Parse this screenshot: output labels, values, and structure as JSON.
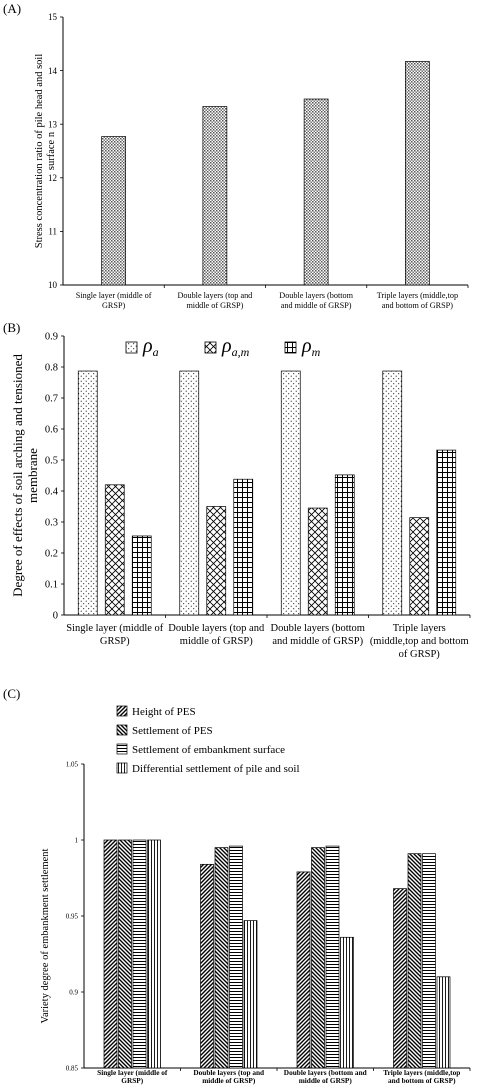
{
  "chart_data": [
    {
      "panel": "(A)",
      "type": "bar",
      "ylabel_lines": [
        "Stress concentration ratio of pile head and soil",
        "surface n"
      ],
      "ylim": [
        10,
        15
      ],
      "yticks": [
        10,
        11,
        12,
        13,
        14,
        15
      ],
      "grid": false,
      "categories": [
        [
          "Single layer (middle of",
          "GRSP)"
        ],
        [
          "Double layers (top and",
          "middle of GRSP)"
        ],
        [
          "Double layers (bottom",
          "and middle of GRSP)"
        ],
        [
          "Triple layers (middle,top",
          "and bottom of GRSP)"
        ]
      ],
      "values": [
        12.77,
        13.33,
        13.47,
        14.17
      ]
    },
    {
      "panel": "(B)",
      "type": "bar",
      "ylabel_lines": [
        "Degree of effects of soil arching and tensioned",
        "membrane"
      ],
      "ylim": [
        0,
        0.9
      ],
      "yticks": [
        0,
        0.1,
        0.2,
        0.3,
        0.4,
        0.5,
        0.6,
        0.7,
        0.8,
        0.9
      ],
      "grid": false,
      "legend_position": "top",
      "categories": [
        [
          "Single layer (middle of",
          "GRSP)"
        ],
        [
          "Double layers (top and",
          "middle of GRSP)"
        ],
        [
          "Double layers (bottom",
          "and middle of GRSP)"
        ],
        [
          "Triple layers",
          "(middle,top and bottom",
          "of GRSP)"
        ]
      ],
      "series": [
        {
          "name": "ρa",
          "symbol": "ρ",
          "sub": "a",
          "pattern": "dots",
          "values": [
            0.787,
            0.787,
            0.787,
            0.787
          ]
        },
        {
          "name": "ρa,m",
          "symbol": "ρ",
          "sub": "a,m",
          "pattern": "crosshatch",
          "values": [
            0.42,
            0.35,
            0.345,
            0.314
          ]
        },
        {
          "name": "ρm",
          "symbol": "ρ",
          "sub": "m",
          "pattern": "grid",
          "values": [
            0.255,
            0.438,
            0.452,
            0.532
          ]
        }
      ]
    },
    {
      "panel": "(C)",
      "type": "bar",
      "ylabel": "Variety degree of embankment settlement",
      "ylim": [
        0.85,
        1.05
      ],
      "yticks": [
        0.85,
        0.9,
        0.95,
        1,
        1.05
      ],
      "grid": false,
      "legend_position": "top-left",
      "categories": [
        [
          "Single layer (middle of",
          "GRSP)"
        ],
        [
          "Double layers (top and",
          "middle of GRSP)"
        ],
        [
          "Double layers (bottom and",
          "middle of GRSP)"
        ],
        [
          "Triple layers (middle,top",
          "and bottom of GRSP)"
        ]
      ],
      "series": [
        {
          "name": "Height of PES",
          "pattern": "diag-fwd",
          "values": [
            1.0,
            0.984,
            0.979,
            0.968
          ]
        },
        {
          "name": "Settlement of PES",
          "pattern": "diag-back",
          "values": [
            1.0,
            0.995,
            0.995,
            0.991
          ]
        },
        {
          "name": "Settlement of embankment surface",
          "pattern": "horizontal",
          "values": [
            1.0,
            0.996,
            0.996,
            0.991
          ]
        },
        {
          "name": "Differential settlement of pile and soil",
          "pattern": "vertical",
          "values": [
            1.0,
            0.947,
            0.936,
            0.91
          ]
        }
      ]
    }
  ]
}
